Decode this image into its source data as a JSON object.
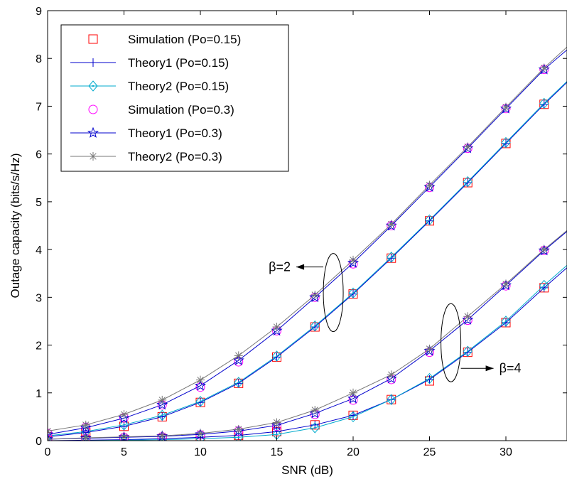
{
  "chart_data": {
    "type": "line",
    "xlabel": "SNR (dB)",
    "ylabel": "Outage capacity (bits/s/Hz)",
    "xlim": [
      0,
      34
    ],
    "ylim": [
      0,
      9
    ],
    "xticks": [
      0,
      5,
      10,
      15,
      20,
      25,
      30
    ],
    "yticks": [
      0,
      1,
      2,
      3,
      4,
      5,
      6,
      7,
      8,
      9
    ],
    "grid": false,
    "legend_position": "top-left",
    "x": [
      0,
      2.5,
      5,
      7.5,
      10,
      12.5,
      15,
      17.5,
      20,
      22.5,
      25,
      27.5,
      30,
      32.5,
      34
    ],
    "series": [
      {
        "name": "Simulation (Po=0.15)",
        "group": "β=2",
        "style": "marker",
        "marker": "square",
        "color": "#ff0000",
        "values": [
          0.08,
          0.17,
          0.3,
          0.5,
          0.8,
          1.2,
          1.75,
          2.38,
          3.07,
          3.82,
          4.6,
          5.4,
          6.22,
          7.04,
          7.5
        ]
      },
      {
        "name": "Theory1 (Po=0.15)",
        "group": "β=2",
        "style": "line",
        "marker": "plus",
        "color": "#0000cc",
        "values": [
          0.08,
          0.17,
          0.3,
          0.5,
          0.8,
          1.2,
          1.75,
          2.38,
          3.07,
          3.82,
          4.6,
          5.4,
          6.22,
          7.04,
          7.5
        ]
      },
      {
        "name": "Theory2 (Po=0.15)",
        "group": "β=2",
        "style": "line",
        "marker": "diamond",
        "color": "#00aacc",
        "values": [
          0.1,
          0.19,
          0.33,
          0.53,
          0.82,
          1.22,
          1.77,
          2.4,
          3.09,
          3.84,
          4.62,
          5.42,
          6.24,
          7.06,
          7.52
        ]
      },
      {
        "name": "Simulation (Po=0.3)",
        "group": "β=2",
        "style": "marker",
        "marker": "circle",
        "color": "#ff00ff",
        "values": [
          0.15,
          0.28,
          0.48,
          0.75,
          1.12,
          1.65,
          2.3,
          3.0,
          3.7,
          4.5,
          5.3,
          6.12,
          6.95,
          7.77,
          8.2
        ]
      },
      {
        "name": "Theory1 (Po=0.3)",
        "group": "β=2",
        "style": "line",
        "marker": "star",
        "color": "#0000cc",
        "values": [
          0.13,
          0.27,
          0.47,
          0.75,
          1.15,
          1.68,
          2.3,
          3.0,
          3.72,
          4.5,
          5.31,
          6.12,
          6.95,
          7.77,
          8.18
        ]
      },
      {
        "name": "Theory2 (Po=0.3)",
        "group": "β=2",
        "style": "line",
        "marker": "asterisk",
        "color": "#777777",
        "values": [
          0.2,
          0.33,
          0.55,
          0.85,
          1.27,
          1.78,
          2.38,
          3.05,
          3.78,
          4.53,
          5.35,
          6.15,
          6.98,
          7.8,
          8.24
        ]
      },
      {
        "name": "Simulation (Po=0.15)",
        "group": "β=4",
        "style": "marker",
        "marker": "square",
        "color": "#ff0000",
        "values": [
          0.0,
          0.01,
          0.02,
          0.04,
          0.07,
          0.11,
          0.19,
          0.33,
          0.53,
          0.86,
          1.25,
          1.85,
          2.47,
          3.2,
          3.62
        ]
      },
      {
        "name": "Theory1 (Po=0.15)",
        "group": "β=4",
        "style": "line",
        "marker": "plus",
        "color": "#0000cc",
        "values": [
          0.0,
          0.01,
          0.02,
          0.04,
          0.07,
          0.11,
          0.19,
          0.33,
          0.53,
          0.86,
          1.28,
          1.85,
          2.47,
          3.2,
          3.62
        ]
      },
      {
        "name": "Theory2 (Po=0.15)",
        "group": "β=4",
        "style": "line",
        "marker": "diamond",
        "color": "#00aacc",
        "values": [
          0.0,
          0.0,
          0.01,
          0.02,
          0.04,
          0.07,
          0.13,
          0.27,
          0.5,
          0.86,
          1.3,
          1.87,
          2.5,
          3.25,
          3.67
        ]
      },
      {
        "name": "Simulation (Po=0.3)",
        "group": "β=4",
        "style": "marker",
        "marker": "circle",
        "color": "#ff00ff",
        "values": [
          0.03,
          0.05,
          0.07,
          0.08,
          0.12,
          0.2,
          0.3,
          0.55,
          0.85,
          1.28,
          1.85,
          2.52,
          3.24,
          3.98,
          4.38
        ]
      },
      {
        "name": "Theory1 (Po=0.3)",
        "group": "β=4",
        "style": "line",
        "marker": "star",
        "color": "#0000cc",
        "values": [
          0.03,
          0.05,
          0.07,
          0.09,
          0.13,
          0.2,
          0.32,
          0.57,
          0.88,
          1.3,
          1.88,
          2.53,
          3.25,
          3.98,
          4.38
        ]
      },
      {
        "name": "Theory2 (Po=0.3)",
        "group": "β=4",
        "style": "line",
        "marker": "asterisk",
        "color": "#777777",
        "values": [
          0.03,
          0.06,
          0.08,
          0.1,
          0.15,
          0.24,
          0.38,
          0.64,
          1.0,
          1.38,
          1.92,
          2.6,
          3.28,
          4.0,
          4.4
        ]
      }
    ],
    "legend": [
      {
        "label": "Simulation (Po=0.15)",
        "marker": "square",
        "color": "#ff0000",
        "line": false
      },
      {
        "label": "Theory1 (Po=0.15)",
        "marker": "plus",
        "color": "#0000cc",
        "line": true
      },
      {
        "label": "Theory2 (Po=0.15)",
        "marker": "diamond",
        "color": "#00aacc",
        "line": true
      },
      {
        "label": "Simulation (Po=0.3)",
        "marker": "circle",
        "color": "#ff00ff",
        "line": false
      },
      {
        "label": "Theory1 (Po=0.3)",
        "marker": "star",
        "color": "#0000cc",
        "line": true
      },
      {
        "label": "Theory2 (Po=0.3)",
        "marker": "asterisk",
        "color": "#777777",
        "line": true
      }
    ],
    "annotations": [
      {
        "text": "β=2",
        "target_group": "β=2",
        "arrow": "left",
        "ellipse_center": [
          18.7,
          3.1
        ]
      },
      {
        "text": "β=4",
        "target_group": "β=4",
        "arrow": "right",
        "ellipse_center": [
          26.4,
          2.05
        ]
      }
    ]
  }
}
